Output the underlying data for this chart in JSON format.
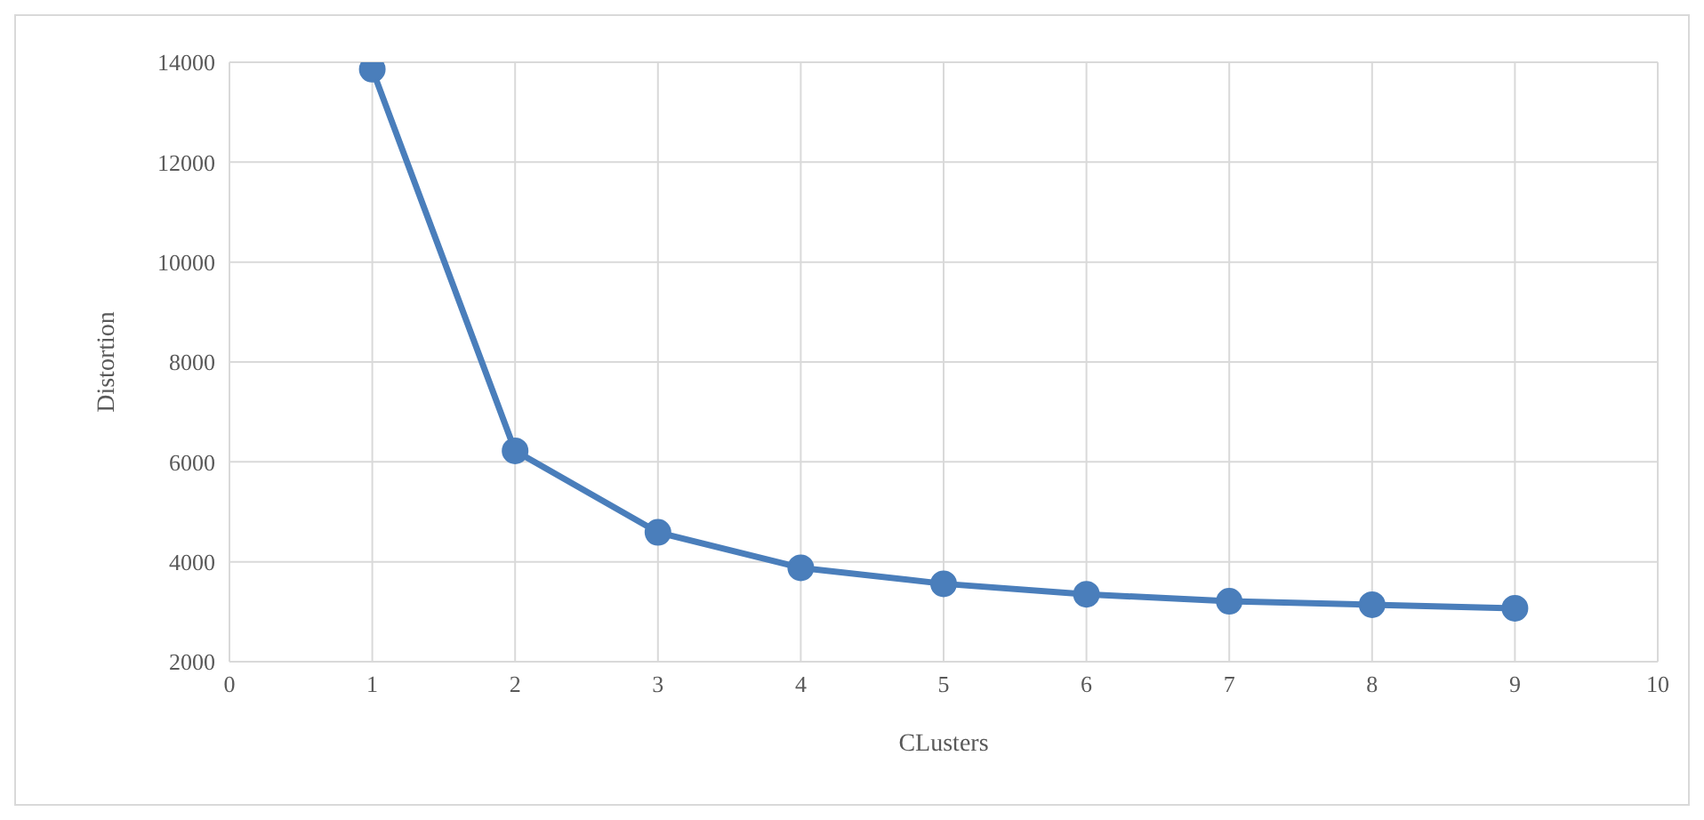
{
  "chart_data": {
    "type": "line",
    "xlabel": "CLusters",
    "ylabel": "Distortion",
    "x": [
      1,
      2,
      3,
      4,
      5,
      6,
      7,
      8,
      9
    ],
    "series": [
      {
        "color": "#4a7ebb",
        "values": [
          13860,
          6220,
          4590,
          3880,
          3560,
          3350,
          3210,
          3140,
          3070
        ]
      }
    ],
    "xlim": [
      0,
      10
    ],
    "xticks": [
      0,
      1,
      2,
      3,
      4,
      5,
      6,
      7,
      8,
      9,
      10
    ],
    "ylim": [
      2000,
      14000
    ],
    "yticks": [
      2000,
      4000,
      6000,
      8000,
      10000,
      12000,
      14000
    ],
    "grid": true,
    "marker": "circle",
    "line_style": "solid",
    "legend": false
  }
}
